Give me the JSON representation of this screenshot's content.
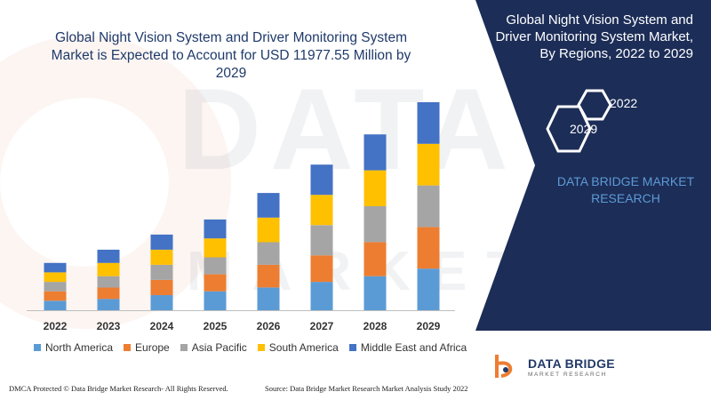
{
  "chart_data": {
    "type": "bar",
    "stacked": true,
    "title": "Global Night Vision System and Driver Monitoring System Market is Expected to Account for USD 11977.55 Million by 2029",
    "categories": [
      "2022",
      "2023",
      "2024",
      "2025",
      "2026",
      "2027",
      "2028",
      "2029"
    ],
    "series": [
      {
        "name": "North America",
        "color": "#5b9bd5",
        "values": [
          0.25,
          0.3,
          0.4,
          0.5,
          0.6,
          0.75,
          0.9,
          1.1
        ]
      },
      {
        "name": "Europe",
        "color": "#ed7d31",
        "values": [
          0.25,
          0.3,
          0.4,
          0.45,
          0.6,
          0.7,
          0.9,
          1.1
        ]
      },
      {
        "name": "Asia Pacific",
        "color": "#a5a5a5",
        "values": [
          0.25,
          0.3,
          0.4,
          0.45,
          0.6,
          0.8,
          0.95,
          1.1
        ]
      },
      {
        "name": "South America",
        "color": "#ffc000",
        "values": [
          0.25,
          0.35,
          0.4,
          0.5,
          0.65,
          0.8,
          0.95,
          1.1
        ]
      },
      {
        "name": "Middle East and Africa",
        "color": "#4472c4",
        "values": [
          0.25,
          0.35,
          0.4,
          0.5,
          0.65,
          0.8,
          0.95,
          1.1
        ]
      }
    ],
    "legend": "bottom",
    "grid": false
  },
  "side_panel": {
    "title": "Global Night Vision System and Driver Monitoring System Market, By Regions, 2022 to 2029",
    "hex_labels": {
      "first": "2022",
      "second": "2029"
    },
    "brand": "DATA BRIDGE MARKET RESEARCH",
    "colors": {
      "panel": "#1c2d57",
      "brand_text": "#5d9ad6"
    }
  },
  "watermark": {
    "line1": "DATA BRIDGE",
    "line2": "MARKET RESEARCH"
  },
  "logo": {
    "name": "DATA BRIDGE",
    "sub": "MARKET RESEARCH",
    "icon": "data-bridge-logo-icon"
  },
  "footer": {
    "left": "DMCA Protected © Data Bridge Market Research- All Rights Reserved.",
    "right": "Source: Data Bridge Market Research Market Analysis Study 2022"
  }
}
